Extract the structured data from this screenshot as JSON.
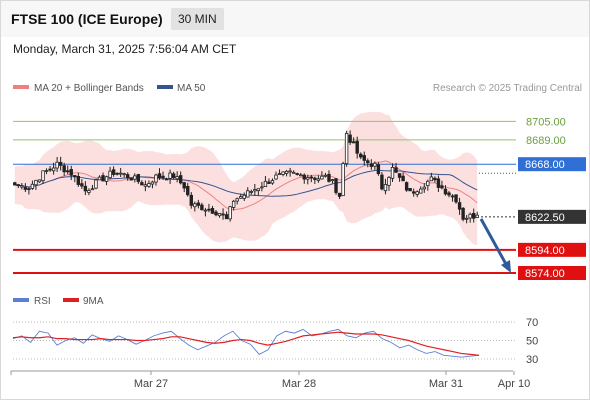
{
  "header": {
    "title": "FTSE 100 (ICE Europe)",
    "interval": "30 MIN",
    "datetime": "Monday, March 31, 2025 7:56:04 AM CET"
  },
  "legend": {
    "bollinger": {
      "label": "MA 20 + Bollinger Bands",
      "color": "#f08080"
    },
    "ma50": {
      "label": "MA 50",
      "color": "#35548f"
    },
    "credit": "Research © 2025 Trading Central"
  },
  "rsi_legend": {
    "rsi": {
      "label": "RSI",
      "color": "#5b7fd6"
    },
    "ma9": {
      "label": "9MA",
      "color": "#e02020"
    }
  },
  "levels": [
    {
      "value": "8705.00",
      "kind": "resistance",
      "color": "#94c26a"
    },
    {
      "value": "8689.00",
      "kind": "resistance",
      "color": "#94c26a"
    },
    {
      "value": "8668.00",
      "kind": "pivot",
      "color": "#2f6fd6"
    },
    {
      "value": "8622.50",
      "kind": "last",
      "color": "#333333"
    },
    {
      "value": "8594.00",
      "kind": "support",
      "color": "#e01010"
    },
    {
      "value": "8574.00",
      "kind": "support",
      "color": "#e01010"
    }
  ],
  "chart_data": {
    "type": "candlestick",
    "ylim": [
      8574,
      8720
    ],
    "x_labels": [
      "Mar 27",
      "Mar 28",
      "Mar 31",
      "Apr 10"
    ],
    "close_anchors": [
      {
        "i": 0,
        "v": 8650
      },
      {
        "i": 4,
        "v": 8648
      },
      {
        "i": 8,
        "v": 8660
      },
      {
        "i": 12,
        "v": 8668
      },
      {
        "i": 16,
        "v": 8660
      },
      {
        "i": 20,
        "v": 8645
      },
      {
        "i": 24,
        "v": 8654
      },
      {
        "i": 28,
        "v": 8661
      },
      {
        "i": 30,
        "v": 8660
      },
      {
        "i": 34,
        "v": 8655
      },
      {
        "i": 37,
        "v": 8650
      },
      {
        "i": 40,
        "v": 8657
      },
      {
        "i": 45,
        "v": 8658
      },
      {
        "i": 48,
        "v": 8649
      },
      {
        "i": 50,
        "v": 8633
      },
      {
        "i": 54,
        "v": 8630
      },
      {
        "i": 58,
        "v": 8626
      },
      {
        "i": 60,
        "v": 8620
      },
      {
        "i": 62,
        "v": 8637
      },
      {
        "i": 66,
        "v": 8643
      },
      {
        "i": 70,
        "v": 8650
      },
      {
        "i": 74,
        "v": 8657
      },
      {
        "i": 78,
        "v": 8660
      },
      {
        "i": 82,
        "v": 8658
      },
      {
        "i": 86,
        "v": 8656
      },
      {
        "i": 88,
        "v": 8657
      },
      {
        "i": 90,
        "v": 8652
      },
      {
        "i": 92,
        "v": 8641
      },
      {
        "i": 94,
        "v": 8695
      },
      {
        "i": 98,
        "v": 8672
      },
      {
        "i": 102,
        "v": 8667
      },
      {
        "i": 104,
        "v": 8648
      },
      {
        "i": 107,
        "v": 8664
      },
      {
        "i": 112,
        "v": 8643
      },
      {
        "i": 118,
        "v": 8655
      },
      {
        "i": 122,
        "v": 8645
      },
      {
        "i": 125,
        "v": 8638
      },
      {
        "i": 127,
        "v": 8622
      },
      {
        "i": 131,
        "v": 8624
      }
    ],
    "projection": {
      "from": 8622.5,
      "to": 8574.0
    },
    "rsi": {
      "levels": [
        30,
        50,
        70
      ],
      "series": [
        {
          "name": "RSI",
          "values": [
            52,
            55,
            48,
            60,
            58,
            45,
            50,
            53,
            47,
            56,
            52,
            49,
            55,
            51,
            46,
            50,
            55,
            58,
            60,
            52,
            45,
            40,
            44,
            48,
            55,
            60,
            50,
            46,
            35,
            40,
            55,
            60,
            58,
            62,
            55,
            57,
            60,
            62,
            55,
            53,
            58,
            60,
            52,
            48,
            42,
            45,
            40,
            36,
            38,
            34,
            33,
            32,
            33,
            34
          ]
        },
        {
          "name": "9MA",
          "values": [
            53,
            54,
            53,
            53,
            54,
            52,
            52,
            51,
            51,
            51,
            52,
            51,
            51,
            51,
            50,
            50,
            51,
            52,
            54,
            54,
            52,
            50,
            48,
            47,
            48,
            50,
            51,
            50,
            47,
            45,
            47,
            49,
            52,
            55,
            56,
            57,
            58,
            59,
            58,
            57,
            57,
            57,
            56,
            54,
            52,
            50,
            47,
            44,
            42,
            40,
            38,
            36,
            35,
            34
          ]
        }
      ]
    }
  }
}
